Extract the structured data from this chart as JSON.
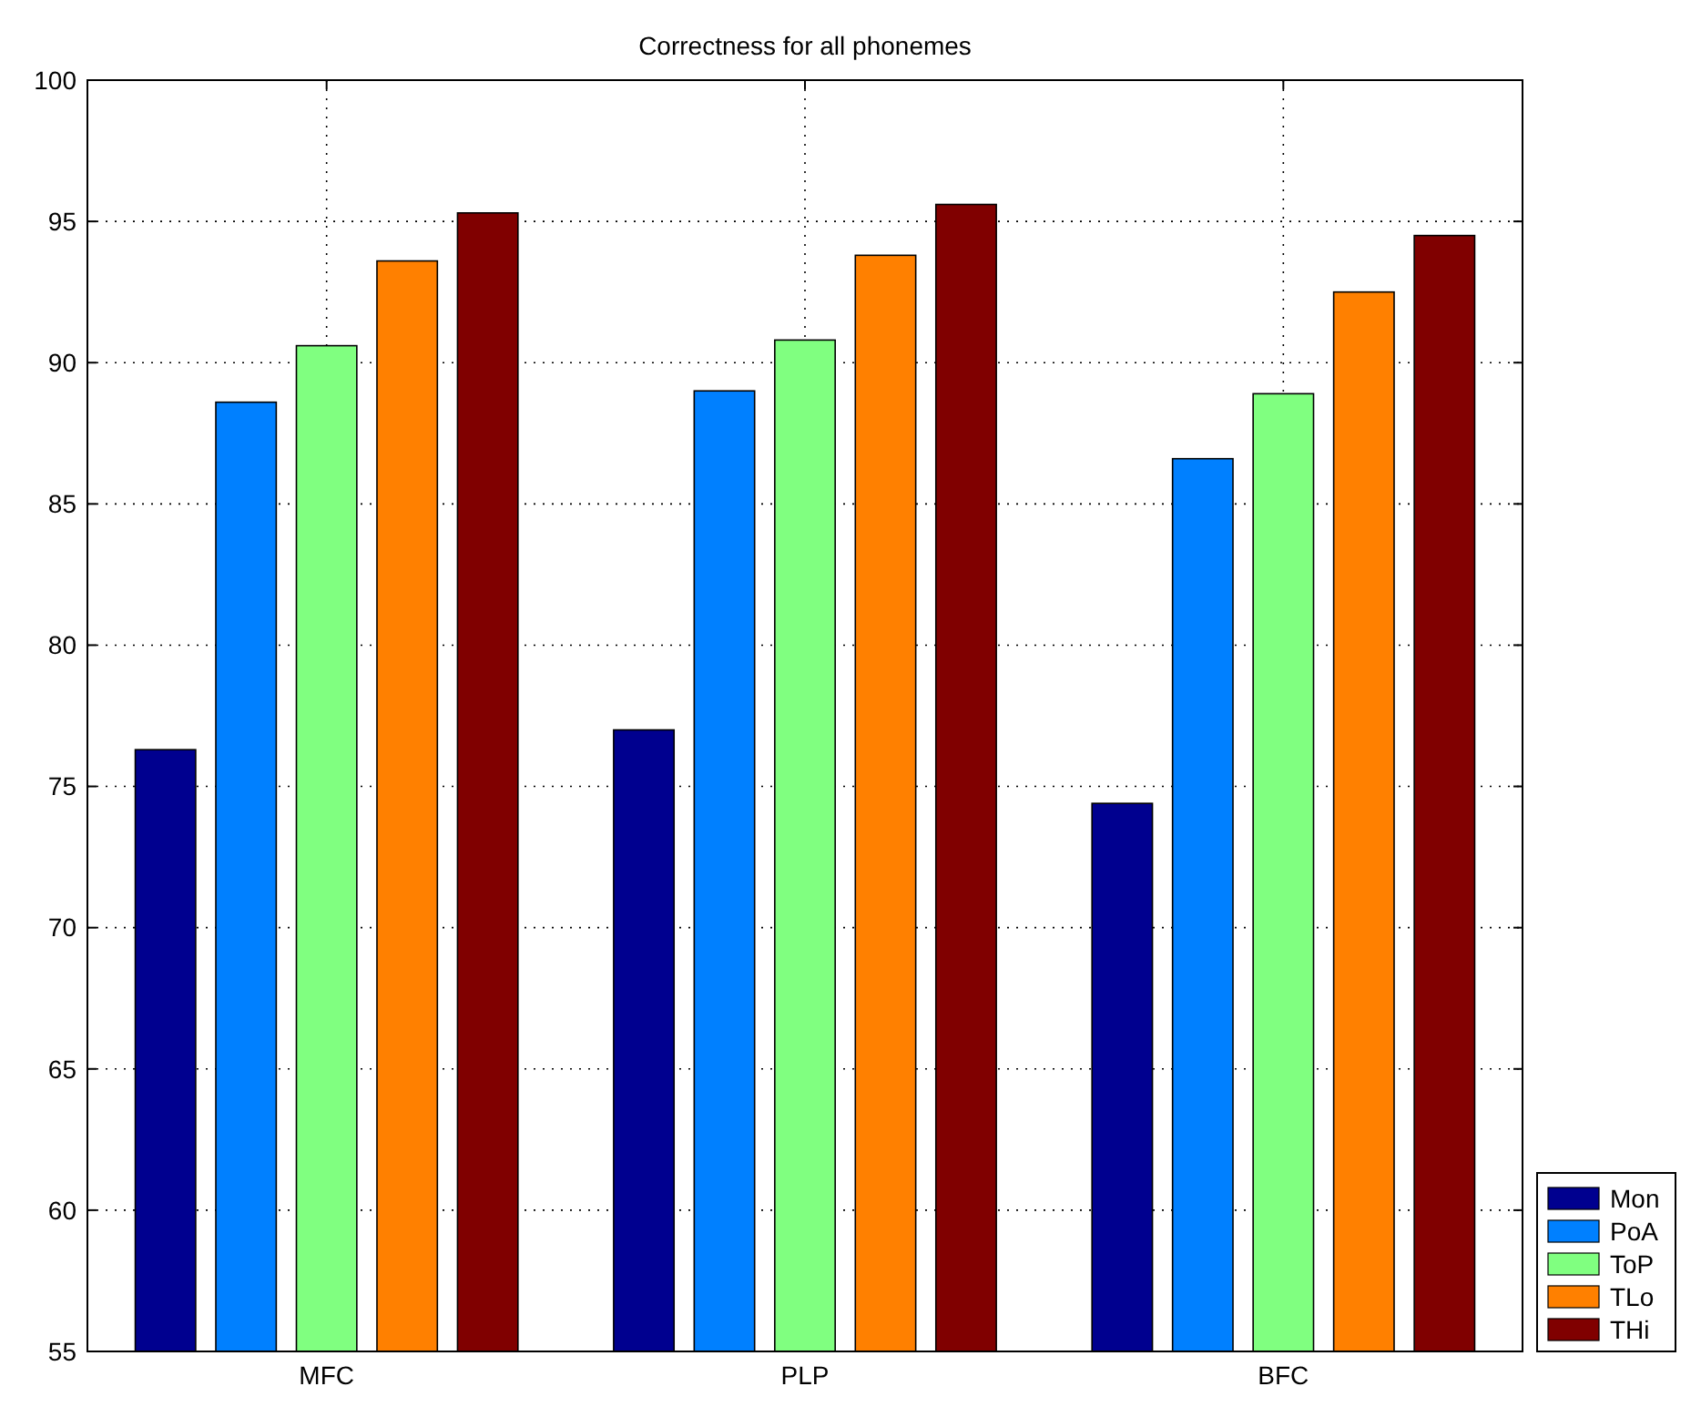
{
  "chart_data": {
    "type": "bar",
    "title": "Correctness for all phonemes",
    "categories": [
      "MFC",
      "PLP",
      "BFC"
    ],
    "series": [
      {
        "name": "Mon",
        "color": "#00008f",
        "values": [
          76.3,
          77.0,
          74.4
        ]
      },
      {
        "name": "PoA",
        "color": "#0080ff",
        "values": [
          88.6,
          89.0,
          86.6
        ]
      },
      {
        "name": "ToP",
        "color": "#80ff80",
        "values": [
          90.6,
          90.8,
          88.9
        ]
      },
      {
        "name": "TLo",
        "color": "#ff8000",
        "values": [
          93.6,
          93.8,
          92.5
        ]
      },
      {
        "name": "THi",
        "color": "#800000",
        "values": [
          95.3,
          95.6,
          94.5
        ]
      }
    ],
    "ylim": [
      55,
      100
    ],
    "yticks": [
      55,
      60,
      65,
      70,
      75,
      80,
      85,
      90,
      95,
      100
    ],
    "grid": true,
    "legend": "right"
  }
}
